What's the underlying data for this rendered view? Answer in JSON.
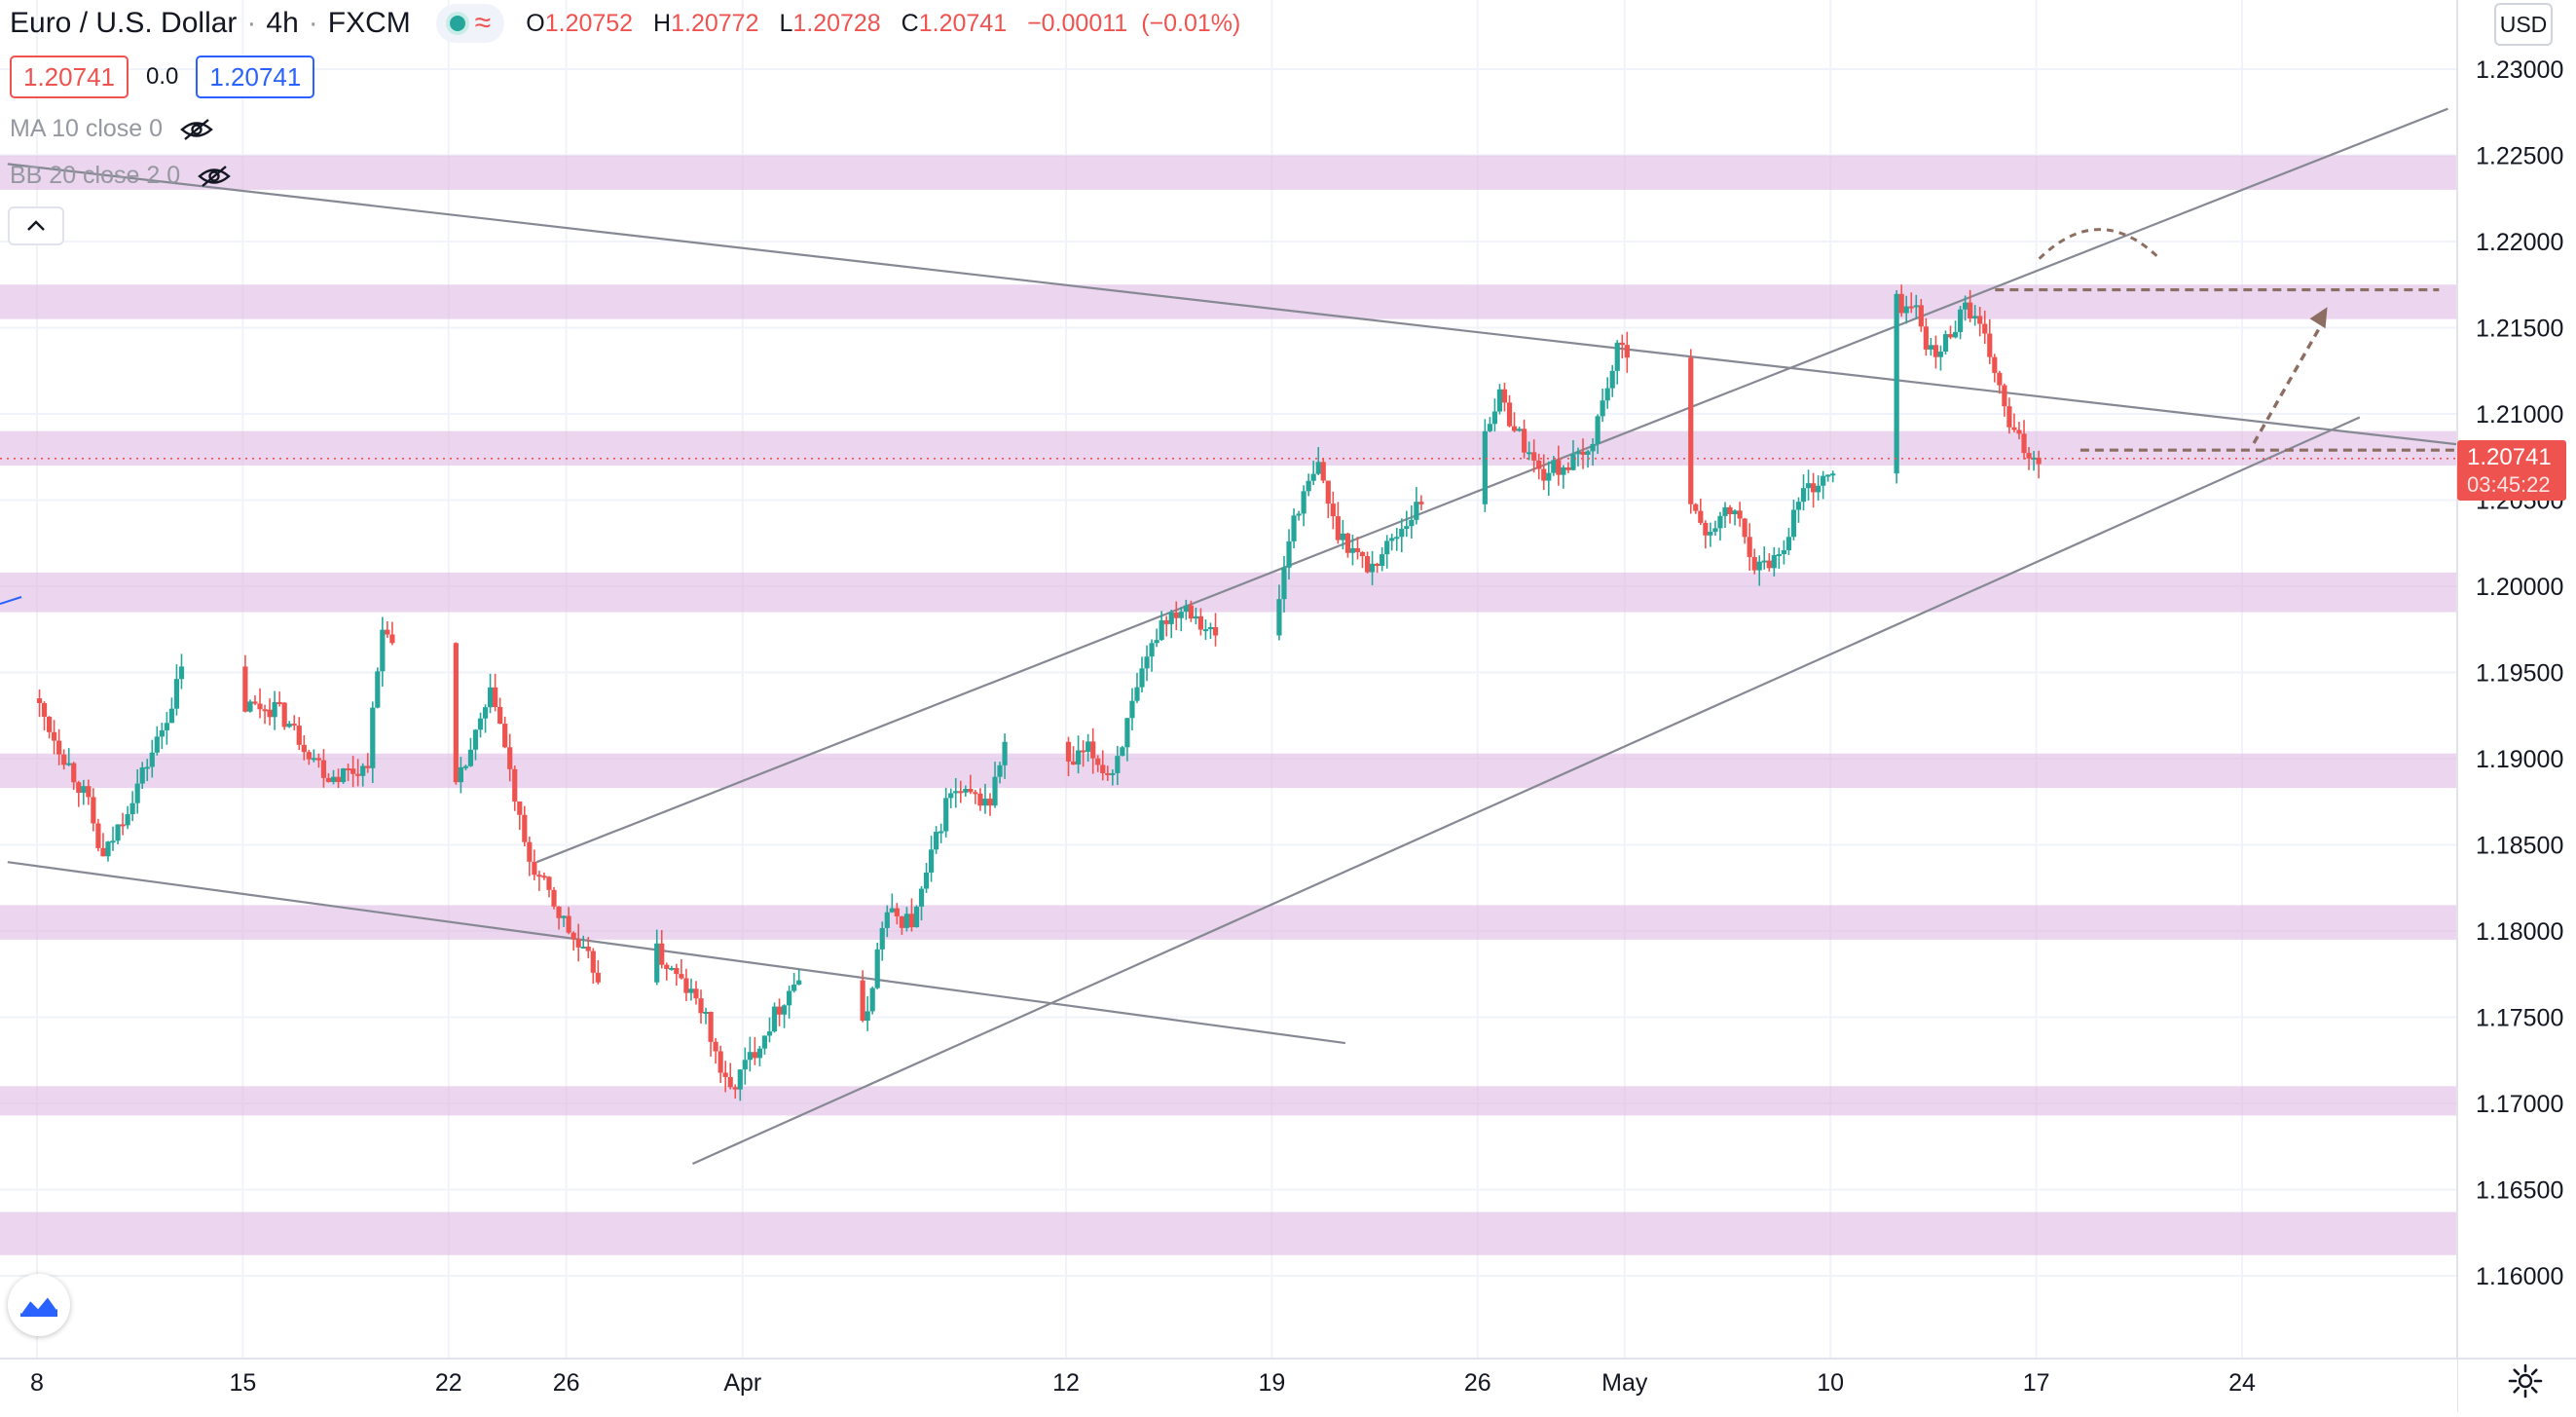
{
  "header": {
    "symbol_title": "Euro / U.S. Dollar",
    "interval": "4h",
    "exchange": "FXCM",
    "ohlc": {
      "open_label": "O",
      "open": "1.20752",
      "high_label": "H",
      "high": "1.20772",
      "low_label": "L",
      "low": "1.20728",
      "close_label": "C",
      "close": "1.20741",
      "change": "−0.00011",
      "change_pct": "(−0.01%)"
    },
    "status_color": "#26a69a"
  },
  "trade": {
    "sell_price": "1.20741",
    "spread": "0.0",
    "buy_price": "1.20741"
  },
  "indicators": [
    {
      "label": "MA 10 close 0",
      "visible": false
    },
    {
      "label": "BB 20 close 2 0",
      "visible": false
    }
  ],
  "price_axis": {
    "currency": "USD",
    "last_price": "1.20741",
    "countdown": "03:45:22"
  },
  "colors": {
    "up": "#26a69a",
    "down": "#ef5350",
    "zone": "#e1bee7",
    "trendline": "#868993",
    "annotation": "#8d6e63"
  },
  "chart_data": {
    "type": "candlestick",
    "y_ticks": [
      1.16,
      1.165,
      1.17,
      1.175,
      1.18,
      1.185,
      1.19,
      1.195,
      1.2,
      1.205,
      1.21,
      1.215,
      1.22,
      1.225,
      1.23
    ],
    "y_tick_labels": [
      "1.16000",
      "1.16500",
      "1.17000",
      "1.17500",
      "1.18000",
      "1.18500",
      "1.19000",
      "1.19500",
      "1.20000",
      "1.20500",
      "1.21000",
      "1.21500",
      "1.22000",
      "1.22500",
      "1.23000"
    ],
    "ylim": [
      1.1555,
      1.2337
    ],
    "x_domain_days": [
      0,
      117
    ],
    "x_ticks": [
      {
        "label": "8",
        "day": 0
      },
      {
        "label": "15",
        "day": 7
      },
      {
        "label": "22",
        "day": 14
      },
      {
        "label": "26",
        "day": 18
      },
      {
        "label": "Apr",
        "day": 24
      },
      {
        "label": "12",
        "day": 35
      },
      {
        "label": "19",
        "day": 42
      },
      {
        "label": "26",
        "day": 49
      },
      {
        "label": "May",
        "day": 54
      },
      {
        "label": "10",
        "day": 61
      },
      {
        "label": "17",
        "day": 68
      },
      {
        "label": "24",
        "day": 75
      }
    ],
    "grid": true,
    "key_prices": [
      {
        "x": 0,
        "y": 1.1935
      },
      {
        "x": 1.8,
        "y": 1.1875
      },
      {
        "x": 2.3,
        "y": 1.184
      },
      {
        "x": 4.3,
        "y": 1.1915
      },
      {
        "x": 5.8,
        "y": 1.199
      },
      {
        "x": 6.6,
        "y": 1.193
      },
      {
        "x": 8.2,
        "y": 1.193
      },
      {
        "x": 10.0,
        "y": 1.189
      },
      {
        "x": 11.3,
        "y": 1.1895
      },
      {
        "x": 11.9,
        "y": 1.1985
      },
      {
        "x": 12.8,
        "y": 1.1915
      },
      {
        "x": 14.3,
        "y": 1.188
      },
      {
        "x": 15.6,
        "y": 1.194
      },
      {
        "x": 16.7,
        "y": 1.1845
      },
      {
        "x": 18.5,
        "y": 1.179
      },
      {
        "x": 19.6,
        "y": 1.1765
      },
      {
        "x": 20.8,
        "y": 1.1795
      },
      {
        "x": 22.7,
        "y": 1.1755
      },
      {
        "x": 23.6,
        "y": 1.1705
      },
      {
        "x": 25.8,
        "y": 1.177
      },
      {
        "x": 26.6,
        "y": 1.178
      },
      {
        "x": 28.2,
        "y": 1.1742
      },
      {
        "x": 28.9,
        "y": 1.181
      },
      {
        "x": 29.9,
        "y": 1.1805
      },
      {
        "x": 31.1,
        "y": 1.188
      },
      {
        "x": 32.5,
        "y": 1.1875
      },
      {
        "x": 33.1,
        "y": 1.1915
      },
      {
        "x": 34.3,
        "y": 1.188
      },
      {
        "x": 35.8,
        "y": 1.1905
      },
      {
        "x": 36.6,
        "y": 1.189
      },
      {
        "x": 38.3,
        "y": 1.198
      },
      {
        "x": 39.2,
        "y": 1.199
      },
      {
        "x": 40.4,
        "y": 1.1965
      },
      {
        "x": 41.2,
        "y": 1.199
      },
      {
        "x": 42.0,
        "y": 1.196
      },
      {
        "x": 42.8,
        "y": 1.204
      },
      {
        "x": 43.7,
        "y": 1.207
      },
      {
        "x": 44.2,
        "y": 1.2035
      },
      {
        "x": 45.4,
        "y": 1.201
      },
      {
        "x": 47.2,
        "y": 1.205
      },
      {
        "x": 47.8,
        "y": 1.2005
      },
      {
        "x": 48.9,
        "y": 1.2075
      },
      {
        "x": 49.8,
        "y": 1.211
      },
      {
        "x": 51.2,
        "y": 1.2065
      },
      {
        "x": 52.8,
        "y": 1.2075
      },
      {
        "x": 53.8,
        "y": 1.2135
      },
      {
        "x": 54.3,
        "y": 1.214
      },
      {
        "x": 55.6,
        "y": 1.2095
      },
      {
        "x": 56.7,
        "y": 1.203
      },
      {
        "x": 57.8,
        "y": 1.2045
      },
      {
        "x": 58.6,
        "y": 1.201
      },
      {
        "x": 59.4,
        "y": 1.202
      },
      {
        "x": 60.1,
        "y": 1.2055
      },
      {
        "x": 61.2,
        "y": 1.2065
      },
      {
        "x": 62.3,
        "y": 1.212
      },
      {
        "x": 63.3,
        "y": 1.2165
      },
      {
        "x": 64.0,
        "y": 1.216
      },
      {
        "x": 64.6,
        "y": 1.213
      },
      {
        "x": 65.7,
        "y": 1.2165
      },
      {
        "x": 66.5,
        "y": 1.2135
      },
      {
        "x": 67.2,
        "y": 1.209
      },
      {
        "x": 67.9,
        "y": 1.2075
      },
      {
        "x": 68.8,
        "y": 1.208
      },
      {
        "x": 69.5,
        "y": 1.2074
      }
    ],
    "resistance_zones": [
      [
        1.223,
        1.225
      ],
      [
        1.2155,
        1.2175
      ],
      [
        1.207,
        1.209
      ],
      [
        1.1985,
        1.2008
      ],
      [
        1.1883,
        1.1903
      ],
      [
        1.1795,
        1.1815
      ],
      [
        1.1693,
        1.171
      ],
      [
        1.1612,
        1.1637
      ]
    ],
    "trendlines": [
      {
        "x1": -1,
        "y1": 1.2245,
        "x2": 82.5,
        "y2": 1.2082
      },
      {
        "x1": -1,
        "y1": 1.184,
        "x2": 44.5,
        "y2": 1.1735
      },
      {
        "x1": 17,
        "y1": 1.184,
        "x2": 82,
        "y2": 1.2277
      },
      {
        "x1": 22.3,
        "y1": 1.1665,
        "x2": 79,
        "y2": 1.2098
      }
    ],
    "annotations": {
      "top_dashed": {
        "x1": 66.6,
        "x2": 81.7,
        "y": 1.2172
      },
      "bottom_dashed": {
        "x1": 69.5,
        "x2": 83.4,
        "y": 1.2079
      },
      "arc": {
        "x1": 68.1,
        "x2": 72.2,
        "y_base": 1.219,
        "y_top": 1.2207
      },
      "arrow": {
        "x1": 75.4,
        "y1": 1.2083,
        "x2": 77.9,
        "y2": 1.2162
      }
    },
    "last_price": 1.20741
  }
}
